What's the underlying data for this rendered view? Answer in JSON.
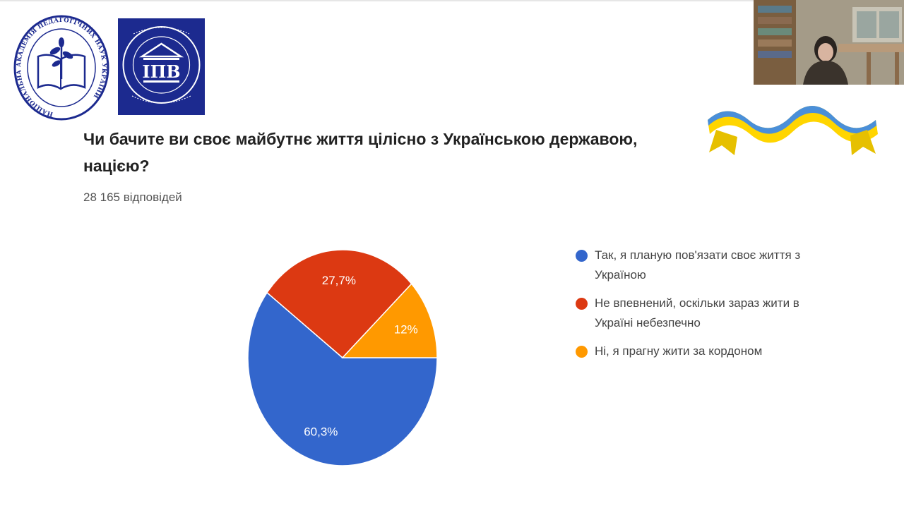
{
  "question": "Чи бачите ви своє майбутнє життя цілісно з Українською державою, нацією?",
  "responses": "28 165 відповідей",
  "logos": {
    "napn_text": "НАЦІОНАЛЬНА АКАДЕМІЯ ПЕДАГОГІЧНИХ НАУК УКРАЇНИ",
    "ipv_text": "ІПВ"
  },
  "colors": {
    "blue": "#3366cc",
    "red": "#dc3912",
    "orange": "#ff9900",
    "logo_navy": "#1c2a8f"
  },
  "chart_data": {
    "type": "pie",
    "categories": [
      "Так, я планую пов'язати своє життя з Україною",
      "Не впевнений, оскільки зараз жити в Україні небезпечно",
      "Ні, я прагну жити за кордоном"
    ],
    "values": [
      60.3,
      27.7,
      12
    ],
    "data_labels": [
      "60,3%",
      "27,7%",
      "12%"
    ],
    "colors": [
      "#3366cc",
      "#dc3912",
      "#ff9900"
    ],
    "legend_position": "right"
  },
  "legend": [
    {
      "label": "Так, я планую пов'язати своє життя з Україною",
      "color": "#3366cc"
    },
    {
      "label": "Не впевнений, оскільки зараз жити в Україні небезпечно",
      "color": "#dc3912"
    },
    {
      "label": "Ні, я прагну жити за кордоном",
      "color": "#ff9900"
    }
  ]
}
